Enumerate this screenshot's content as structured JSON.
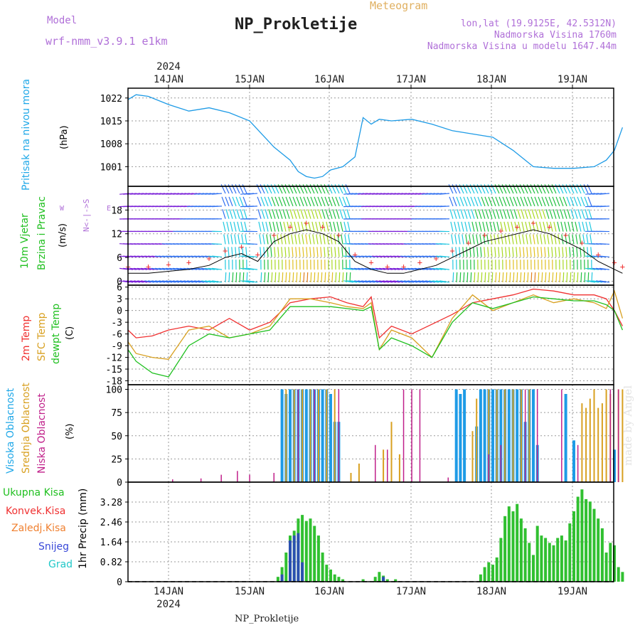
{
  "header": {
    "model_label": "Model",
    "model_name": "wrf-nmm_v3.9.1  e1km",
    "title": "NP_Prokletije",
    "meteogram_label": "Meteogram",
    "location": "lon,lat (19.9125E, 42.5312N)",
    "altitude": "Nadmorska Visina 1760m",
    "model_altitude": "Nadmorska Visina u modelu 1647.44m",
    "footer": "NP_Prokletije",
    "credit": "made by Angel"
  },
  "colors": {
    "pressure": "#1e9be6",
    "temp_2m": "#f03030",
    "temp_sfc": "#d8a020",
    "dewpoint": "#20c020",
    "high_cloud": "#1e9be6",
    "mid_cloud": "#d8a020",
    "low_cloud": "#c0208a",
    "precip_total": "#30c030",
    "precip_snow": "#2a50b0",
    "label_purple": "#b070d8",
    "label_cyan": "#20a8e8",
    "label_green": "#20c020"
  },
  "chart_data": [
    {
      "type": "line",
      "ylabel_left": "Pritisak na nivou mora",
      "unit": "(hPa)",
      "x_ticks": [
        "14JAN",
        "15JAN",
        "16JAN",
        "17JAN",
        "18JAN",
        "19JAN"
      ],
      "x_year": "2024",
      "y_ticks": [
        1001,
        1008,
        1015,
        1022
      ],
      "ylim": [
        995,
        1025
      ],
      "grid": true,
      "series": [
        {
          "name": "Pritisak na nivou mora",
          "color_key": "pressure",
          "x": [
            0.0,
            0.1,
            0.25,
            0.5,
            0.75,
            1.0,
            1.25,
            1.5,
            1.65,
            1.8,
            1.9,
            2.0,
            2.1,
            2.2,
            2.3,
            2.4,
            2.5,
            2.65,
            2.8,
            2.9,
            3.0,
            3.1,
            3.25,
            3.5,
            3.75,
            4.0,
            4.25,
            4.5,
            4.75,
            5.0,
            5.25,
            5.5,
            5.75,
            5.9,
            6.0,
            6.1
          ],
          "values": [
            1021.5,
            1023,
            1022.5,
            1020,
            1018,
            1019,
            1017.5,
            1015,
            1011,
            1007,
            1005,
            1003,
            999.5,
            998,
            997.5,
            998,
            1000,
            1001,
            1004,
            1016,
            1014,
            1015.5,
            1015,
            1015.5,
            1014,
            1012,
            1011,
            1010,
            1006,
            1001,
            1000.5,
            1000.5,
            1001,
            1003,
            1006,
            1013
          ]
        }
      ]
    },
    {
      "type": "line",
      "ylabel_left": "10m Vjetar Brzina i Pravac",
      "unit": "(m/s)",
      "compass": "N, S, E, W",
      "y_ticks": [
        0,
        6,
        12,
        18
      ],
      "ylim": [
        -1,
        24
      ],
      "grid": true,
      "series": [
        {
          "name": "10m Vjetar Brzina",
          "color_key": "wind",
          "x": [
            0.0,
            0.25,
            0.5,
            0.75,
            1.0,
            1.2,
            1.4,
            1.6,
            1.8,
            2.0,
            2.2,
            2.4,
            2.6,
            2.8,
            3.0,
            3.2,
            3.4,
            3.6,
            3.8,
            4.0,
            4.2,
            4.4,
            4.6,
            4.8,
            5.0,
            5.2,
            5.4,
            5.6,
            5.8,
            6.0,
            6.1
          ],
          "values": [
            2,
            2,
            2.5,
            3,
            4,
            6,
            7,
            5,
            10,
            12,
            13,
            12,
            10,
            5,
            3,
            2,
            2,
            3,
            4,
            6,
            8,
            10,
            11,
            12,
            13,
            12,
            10,
            8,
            5,
            3,
            2
          ]
        }
      ]
    },
    {
      "type": "line",
      "ylabel_left": "2m Temp / SFC Temp / dewpt Temp",
      "unit": "(C)",
      "y_ticks": [
        -18,
        -15,
        -12,
        -9,
        -6,
        -3,
        0,
        3,
        6
      ],
      "ylim": [
        -19,
        6.5
      ],
      "grid": true,
      "series": [
        {
          "name": "2m Temp",
          "color_key": "temp_2m",
          "x": [
            0.0,
            0.1,
            0.3,
            0.5,
            0.75,
            1.0,
            1.25,
            1.5,
            1.75,
            2.0,
            2.25,
            2.5,
            2.7,
            2.9,
            3.0,
            3.1,
            3.25,
            3.5,
            3.75,
            4.0,
            4.25,
            4.5,
            4.75,
            5.0,
            5.25,
            5.5,
            5.75,
            5.9,
            6.0,
            6.1
          ],
          "values": [
            -5,
            -7,
            -6.5,
            -5,
            -4,
            -5,
            -2,
            -5,
            -3,
            2,
            3,
            3.5,
            2,
            1,
            3.5,
            -7,
            -4,
            -6,
            -3.5,
            -1,
            2,
            3,
            4,
            5.5,
            5,
            4,
            4,
            3,
            0,
            -4
          ]
        },
        {
          "name": "SFC Temp",
          "color_key": "temp_sfc",
          "x": [
            0.0,
            0.1,
            0.3,
            0.5,
            0.75,
            1.0,
            1.25,
            1.5,
            1.75,
            2.0,
            2.25,
            2.5,
            2.7,
            2.9,
            3.0,
            3.1,
            3.25,
            3.5,
            3.75,
            4.0,
            4.25,
            4.5,
            4.75,
            5.0,
            5.25,
            5.5,
            5.75,
            5.9,
            6.0,
            6.1
          ],
          "values": [
            -8,
            -11,
            -12,
            -12.5,
            -5,
            -4,
            -7,
            -6,
            -4,
            3,
            3,
            2,
            1,
            0.5,
            2,
            -10,
            -5,
            -7,
            -12,
            -2,
            4,
            0,
            2,
            4,
            2,
            3,
            2,
            0.5,
            5,
            -2
          ]
        },
        {
          "name": "dewpt Temp",
          "color_key": "dewpoint",
          "x": [
            0.0,
            0.1,
            0.3,
            0.5,
            0.75,
            1.0,
            1.25,
            1.5,
            1.75,
            2.0,
            2.25,
            2.5,
            2.7,
            2.9,
            3.0,
            3.1,
            3.25,
            3.5,
            3.75,
            4.0,
            4.25,
            4.5,
            4.75,
            5.0,
            5.25,
            5.5,
            5.75,
            5.9,
            6.0,
            6.1
          ],
          "values": [
            -10,
            -13,
            -16,
            -17,
            -9,
            -6,
            -7,
            -6,
            -5,
            1,
            1,
            1,
            0.5,
            0,
            1,
            -10,
            -7,
            -9,
            -12,
            -3,
            2,
            0.5,
            2,
            3.5,
            3,
            2.5,
            2.5,
            1.5,
            0,
            -5
          ]
        }
      ]
    },
    {
      "type": "bar",
      "ylabel_left": "Visoka Oblacnost / Srednja Oblacnost / Niska Oblacnost",
      "unit": "(%)",
      "y_ticks": [
        0,
        25,
        50,
        75,
        100
      ],
      "ylim": [
        0,
        105
      ],
      "grid": true,
      "series": [
        {
          "name": "Visoka Oblacnost",
          "color_key": "high_cloud",
          "x": [
            1.9,
            1.95,
            2.0,
            2.05,
            2.1,
            2.15,
            2.2,
            2.25,
            2.3,
            2.35,
            2.4,
            2.45,
            2.5,
            2.55,
            2.6,
            4.05,
            4.1,
            4.15,
            4.3,
            4.35,
            4.4,
            4.45,
            4.5,
            4.55,
            4.6,
            4.65,
            4.7,
            4.75,
            4.8,
            4.85,
            4.9,
            4.95,
            5.0,
            5.05,
            5.4,
            5.5,
            6.0
          ],
          "values": [
            100,
            95,
            100,
            100,
            100,
            100,
            100,
            100,
            100,
            100,
            100,
            100,
            95,
            65,
            65,
            100,
            95,
            100,
            60,
            100,
            100,
            100,
            100,
            100,
            100,
            100,
            100,
            100,
            100,
            100,
            65,
            100,
            100,
            40,
            95,
            45,
            35
          ]
        },
        {
          "name": "Srednja Oblacnost",
          "color_key": "mid_cloud",
          "x": [
            1.95,
            2.05,
            2.15,
            2.25,
            2.35,
            2.45,
            2.55,
            2.75,
            2.85,
            3.15,
            3.25,
            3.35,
            4.25,
            4.3,
            4.45,
            4.55,
            4.65,
            4.75,
            4.85,
            4.95,
            5.6,
            5.65,
            5.7,
            5.75,
            5.8,
            5.85,
            5.9,
            5.95,
            6.05,
            6.1
          ],
          "values": [
            100,
            100,
            100,
            100,
            100,
            100,
            100,
            10,
            20,
            35,
            65,
            30,
            55,
            90,
            100,
            100,
            100,
            100,
            100,
            100,
            85,
            80,
            90,
            100,
            80,
            85,
            100,
            95,
            100,
            100
          ]
        },
        {
          "name": "Niska Oblacnost",
          "color_key": "low_cloud",
          "x": [
            0.55,
            0.9,
            1.15,
            1.35,
            1.5,
            1.8,
            2.1,
            2.3,
            2.6,
            3.05,
            3.2,
            3.4,
            3.5,
            3.6,
            3.95,
            4.45,
            4.6,
            4.9,
            5.05,
            5.35,
            5.55,
            5.95,
            6.05
          ],
          "values": [
            3,
            4,
            8,
            12,
            8,
            10,
            100,
            100,
            100,
            40,
            35,
            100,
            100,
            100,
            5,
            30,
            40,
            100,
            100,
            100,
            40,
            100,
            100
          ]
        }
      ]
    },
    {
      "type": "bar",
      "ylabel_left": "1hr Precip",
      "unit": "(mm)",
      "legend": [
        "Ukupna Kisa",
        "Konvek.Kisa",
        "Zaledj.Kisa",
        "Snijeg",
        "Grad"
      ],
      "y_ticks": [
        0,
        0.82,
        1.64,
        2.46,
        3.28
      ],
      "ylim": [
        0,
        4.1
      ],
      "grid": true,
      "series": [
        {
          "name": "Ukupna Kisa",
          "color_key": "precip_total",
          "x": [
            1.85,
            1.9,
            1.95,
            2.0,
            2.05,
            2.1,
            2.15,
            2.2,
            2.25,
            2.3,
            2.35,
            2.4,
            2.45,
            2.5,
            2.55,
            2.6,
            2.65,
            2.9,
            3.05,
            3.1,
            3.15,
            3.2,
            3.3,
            4.35,
            4.4,
            4.45,
            4.5,
            4.55,
            4.6,
            4.65,
            4.7,
            4.75,
            4.8,
            4.85,
            4.9,
            4.95,
            5.0,
            5.05,
            5.1,
            5.15,
            5.2,
            5.25,
            5.3,
            5.35,
            5.4,
            5.45,
            5.5,
            5.55,
            5.6,
            5.65,
            5.7,
            5.75,
            5.8,
            5.85,
            5.9,
            5.95,
            6.0,
            6.05,
            6.1
          ],
          "values": [
            0.2,
            0.6,
            1.2,
            1.9,
            2.1,
            2.6,
            2.75,
            2.5,
            2.6,
            2.3,
            1.9,
            1.2,
            0.7,
            0.5,
            0.3,
            0.2,
            0.1,
            0.1,
            0.2,
            0.4,
            0.25,
            0.1,
            0.1,
            0.3,
            0.6,
            0.8,
            0.7,
            1.0,
            1.8,
            2.7,
            3.1,
            2.9,
            3.2,
            2.6,
            2.2,
            1.6,
            1.1,
            2.3,
            1.9,
            1.8,
            1.6,
            1.5,
            1.8,
            1.9,
            1.7,
            2.4,
            2.9,
            3.5,
            3.8,
            3.4,
            3.3,
            3.0,
            2.6,
            2.2,
            1.2,
            1.6,
            1.5,
            0.6,
            0.4
          ]
        },
        {
          "name": "Snijeg",
          "color_key": "precip_snow",
          "x": [
            1.9,
            2.0,
            2.05,
            2.1,
            2.15,
            3.15
          ],
          "values": [
            0.3,
            1.7,
            1.9,
            2.0,
            0.8,
            0.2
          ]
        }
      ]
    }
  ]
}
